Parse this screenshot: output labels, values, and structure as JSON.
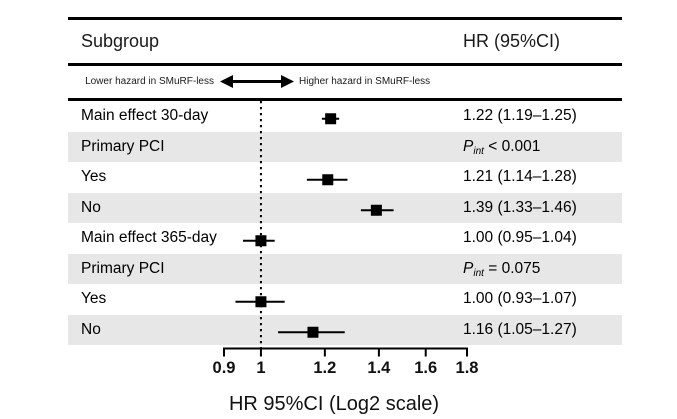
{
  "header": {
    "subgroup_label": "Subgroup",
    "hr_label": "HR (95%CI)"
  },
  "arrow_legend": {
    "left_text": "Lower hazard in SMuRF-less",
    "right_text": "Higher hazard in SMuRF-less"
  },
  "chart_data": {
    "type": "forest",
    "x_scale": "log2",
    "xlabel": "HR 95%CI (Log2 scale)",
    "axis_range": [
      0.9,
      1.8
    ],
    "axis_ticks": [
      0.9,
      1,
      1.2,
      1.4,
      1.6,
      1.8
    ],
    "reference_line": 1,
    "rows": [
      {
        "label": "Main effect 30-day",
        "shaded": false,
        "hr": 1.22,
        "ci_low": 1.19,
        "ci_high": 1.25,
        "value_text": "1.22 (1.19–1.25)"
      },
      {
        "label": "Primary PCI",
        "shaded": true,
        "p_value": {
          "symbol": "P",
          "subscript": "int",
          "comparison": " < 0.001"
        }
      },
      {
        "label": "Yes",
        "shaded": false,
        "hr": 1.21,
        "ci_low": 1.14,
        "ci_high": 1.28,
        "value_text": "1.21 (1.14–1.28)"
      },
      {
        "label": "No",
        "shaded": true,
        "hr": 1.39,
        "ci_low": 1.33,
        "ci_high": 1.46,
        "value_text": "1.39 (1.33–1.46)"
      },
      {
        "label": "Main effect 365-day",
        "shaded": false,
        "hr": 1.0,
        "ci_low": 0.95,
        "ci_high": 1.04,
        "value_text": "1.00 (0.95–1.04)"
      },
      {
        "label": "Primary PCI",
        "shaded": true,
        "p_value": {
          "symbol": "P",
          "subscript": "int",
          "comparison": " = 0.075"
        }
      },
      {
        "label": "Yes",
        "shaded": false,
        "hr": 1.0,
        "ci_low": 0.93,
        "ci_high": 1.07,
        "value_text": "1.00 (0.93–1.07)"
      },
      {
        "label": "No",
        "shaded": true,
        "hr": 1.16,
        "ci_low": 1.05,
        "ci_high": 1.27,
        "value_text": "1.16 (1.05–1.27)"
      }
    ]
  },
  "colors": {
    "shaded_row": "#e7e7e7",
    "marker": "#000000",
    "line": "#000000"
  }
}
